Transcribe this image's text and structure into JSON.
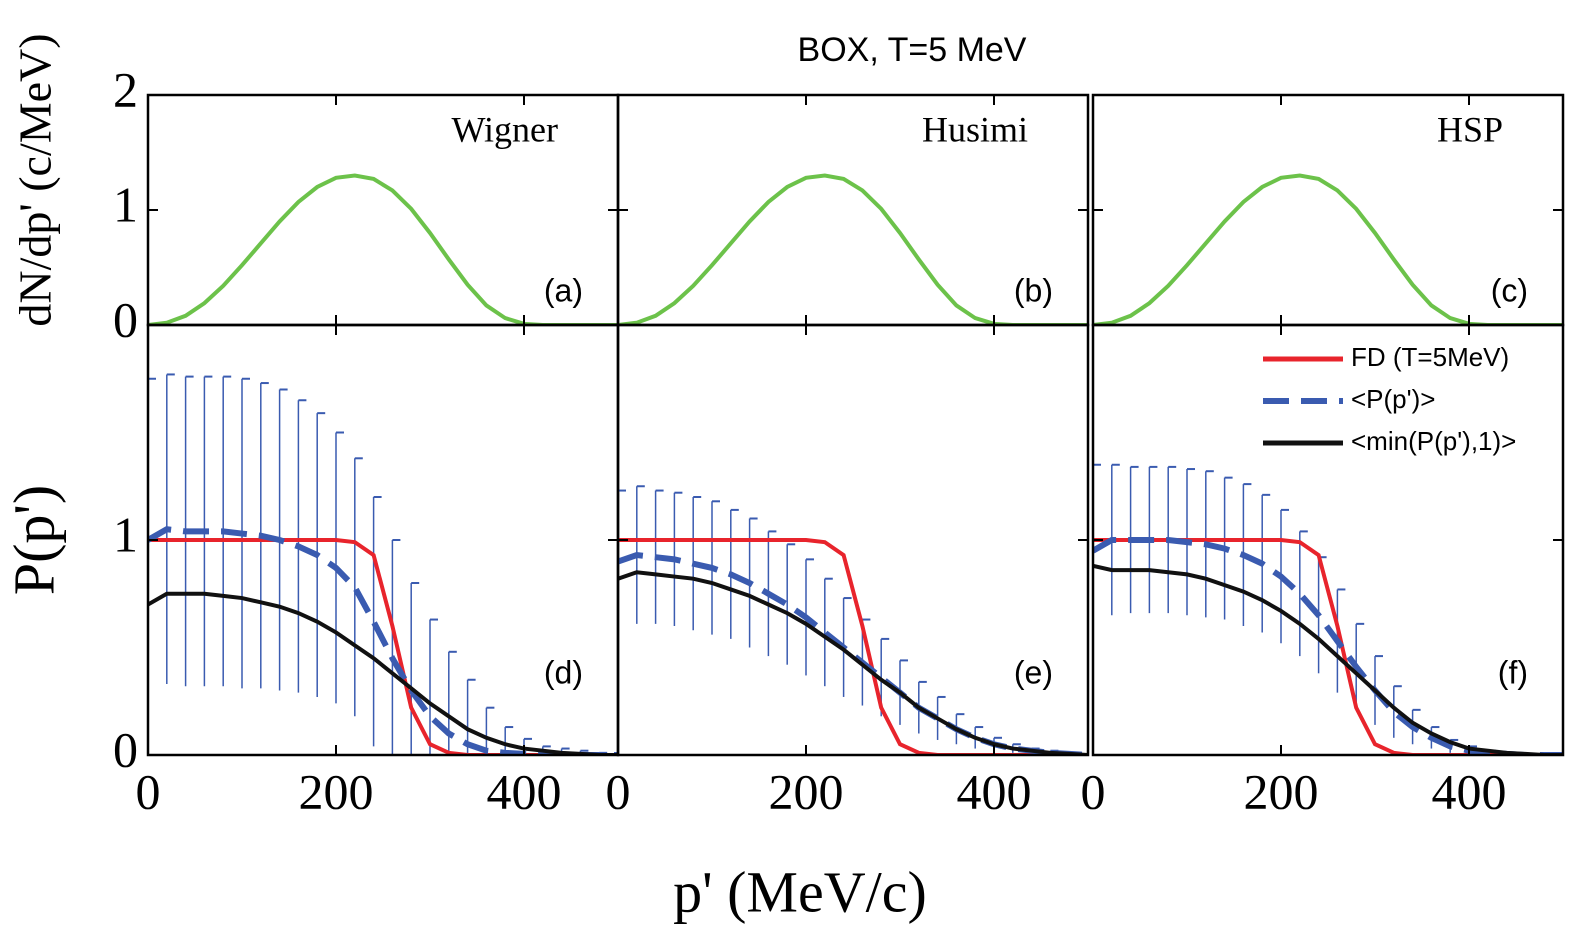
{
  "title": "BOX, T=5 MeV",
  "xlabel": "p' (MeV/c)",
  "chart_data": [
    {
      "type": "line",
      "title": "Wigner",
      "label": "(a)",
      "ylabel": "dN/dp' (c/MeV)",
      "xlim": [
        0,
        500
      ],
      "ylim": [
        0,
        2
      ],
      "xticks": [
        0,
        200,
        400
      ],
      "yticks": [
        0,
        1,
        2
      ],
      "xtick_labels": false,
      "ytick_labels": true,
      "x": [
        0,
        20,
        40,
        60,
        80,
        100,
        120,
        140,
        160,
        180,
        200,
        220,
        240,
        260,
        280,
        300,
        320,
        340,
        360,
        380,
        400,
        420,
        440,
        460,
        480,
        500
      ],
      "series": [
        {
          "color": "#6cc24a",
          "values": [
            0,
            0.02,
            0.08,
            0.19,
            0.34,
            0.52,
            0.71,
            0.9,
            1.07,
            1.2,
            1.28,
            1.3,
            1.27,
            1.17,
            1.01,
            0.8,
            0.57,
            0.35,
            0.17,
            0.06,
            0.01,
            0,
            0,
            0,
            0,
            0
          ]
        }
      ]
    },
    {
      "type": "line",
      "title": "Husimi",
      "label": "(b)",
      "xlim": [
        0,
        500
      ],
      "ylim": [
        0,
        2
      ],
      "xticks": [
        0,
        200,
        400
      ],
      "yticks": [
        0,
        1,
        2
      ],
      "xtick_labels": false,
      "ytick_labels": false,
      "x": [
        0,
        20,
        40,
        60,
        80,
        100,
        120,
        140,
        160,
        180,
        200,
        220,
        240,
        260,
        280,
        300,
        320,
        340,
        360,
        380,
        400,
        420,
        440,
        460,
        480,
        500
      ],
      "series": [
        {
          "color": "#6cc24a",
          "values": [
            0,
            0.02,
            0.08,
            0.19,
            0.34,
            0.52,
            0.71,
            0.9,
            1.07,
            1.2,
            1.28,
            1.3,
            1.27,
            1.17,
            1.01,
            0.8,
            0.57,
            0.35,
            0.17,
            0.06,
            0.01,
            0,
            0,
            0,
            0,
            0
          ]
        }
      ]
    },
    {
      "type": "line",
      "title": "HSP",
      "label": "(c)",
      "xlim": [
        0,
        500
      ],
      "ylim": [
        0,
        2
      ],
      "xticks": [
        0,
        200,
        400
      ],
      "yticks": [
        0,
        1,
        2
      ],
      "xtick_labels": false,
      "ytick_labels": false,
      "x": [
        0,
        20,
        40,
        60,
        80,
        100,
        120,
        140,
        160,
        180,
        200,
        220,
        240,
        260,
        280,
        300,
        320,
        340,
        360,
        380,
        400,
        420,
        440,
        460,
        480,
        500
      ],
      "series": [
        {
          "color": "#6cc24a",
          "values": [
            0,
            0.02,
            0.08,
            0.19,
            0.34,
            0.52,
            0.71,
            0.9,
            1.07,
            1.2,
            1.28,
            1.3,
            1.27,
            1.17,
            1.01,
            0.8,
            0.57,
            0.35,
            0.17,
            0.06,
            0.01,
            0,
            0,
            0,
            0,
            0
          ]
        }
      ]
    },
    {
      "type": "line",
      "label": "(d)",
      "ylabel": "P(p')",
      "xlim": [
        0,
        500
      ],
      "ylim": [
        0,
        2
      ],
      "xticks": [
        0,
        200,
        400
      ],
      "yticks": [
        0,
        1
      ],
      "xtick_labels": true,
      "ytick_labels": true,
      "x": [
        0,
        20,
        40,
        60,
        80,
        100,
        120,
        140,
        160,
        180,
        200,
        220,
        240,
        260,
        280,
        300,
        320,
        340,
        360,
        380,
        400,
        420,
        440,
        460,
        480,
        500
      ],
      "series": [
        {
          "color": "#e8242c",
          "values": [
            1,
            1,
            1,
            1,
            1,
            1,
            1,
            1,
            1,
            1,
            1,
            0.99,
            0.93,
            0.6,
            0.22,
            0.05,
            0.01,
            0,
            0,
            0,
            0,
            0,
            0,
            0,
            0,
            0
          ]
        },
        {
          "color": "#3a5bb0",
          "dash": true,
          "values": [
            1,
            1.05,
            1.04,
            1.04,
            1.04,
            1.03,
            1.02,
            1,
            0.97,
            0.93,
            0.87,
            0.78,
            0.62,
            0.45,
            0.3,
            0.18,
            0.1,
            0.05,
            0.02,
            0.01,
            0.005,
            0,
            0,
            0,
            0,
            0
          ],
          "errors": [
            0.75,
            0.72,
            0.72,
            0.72,
            0.72,
            0.72,
            0.71,
            0.7,
            0.68,
            0.66,
            0.63,
            0.6,
            0.58,
            0.55,
            0.5,
            0.45,
            0.38,
            0.3,
            0.2,
            0.12,
            0.07,
            0.04,
            0.03,
            0.02,
            0.01,
            0.01
          ]
        },
        {
          "color": "#111111",
          "values": [
            0.7,
            0.75,
            0.75,
            0.75,
            0.74,
            0.73,
            0.71,
            0.69,
            0.66,
            0.62,
            0.57,
            0.51,
            0.45,
            0.38,
            0.31,
            0.24,
            0.18,
            0.12,
            0.08,
            0.05,
            0.03,
            0.02,
            0.01,
            0.005,
            0,
            0
          ]
        }
      ]
    },
    {
      "type": "line",
      "label": "(e)",
      "xlim": [
        0,
        500
      ],
      "ylim": [
        0,
        2
      ],
      "xticks": [
        0,
        200,
        400
      ],
      "yticks": [
        0,
        1
      ],
      "xtick_labels": true,
      "ytick_labels": false,
      "x": [
        0,
        20,
        40,
        60,
        80,
        100,
        120,
        140,
        160,
        180,
        200,
        220,
        240,
        260,
        280,
        300,
        320,
        340,
        360,
        380,
        400,
        420,
        440,
        460,
        480,
        500
      ],
      "series": [
        {
          "color": "#e8242c",
          "values": [
            1,
            1,
            1,
            1,
            1,
            1,
            1,
            1,
            1,
            1,
            1,
            0.99,
            0.93,
            0.6,
            0.22,
            0.05,
            0.01,
            0,
            0,
            0,
            0,
            0,
            0,
            0,
            0,
            0
          ]
        },
        {
          "color": "#3a5bb0",
          "dash": true,
          "values": [
            0.9,
            0.93,
            0.92,
            0.91,
            0.89,
            0.87,
            0.84,
            0.8,
            0.75,
            0.7,
            0.64,
            0.57,
            0.5,
            0.43,
            0.36,
            0.29,
            0.22,
            0.17,
            0.12,
            0.08,
            0.05,
            0.03,
            0.02,
            0.01,
            0.005,
            0
          ],
          "errors": [
            0.33,
            0.32,
            0.31,
            0.31,
            0.31,
            0.31,
            0.3,
            0.3,
            0.29,
            0.28,
            0.27,
            0.25,
            0.23,
            0.2,
            0.18,
            0.15,
            0.12,
            0.1,
            0.07,
            0.05,
            0.03,
            0.02,
            0.01,
            0.01,
            0.005,
            0
          ]
        },
        {
          "color": "#111111",
          "values": [
            0.82,
            0.85,
            0.84,
            0.83,
            0.82,
            0.8,
            0.77,
            0.74,
            0.7,
            0.66,
            0.61,
            0.55,
            0.49,
            0.42,
            0.35,
            0.29,
            0.22,
            0.17,
            0.12,
            0.08,
            0.05,
            0.03,
            0.02,
            0.01,
            0.005,
            0
          ]
        }
      ]
    },
    {
      "type": "line",
      "label": "(f)",
      "legend": "upper right",
      "xlim": [
        0,
        500
      ],
      "ylim": [
        0,
        2
      ],
      "xticks": [
        0,
        200,
        400
      ],
      "yticks": [
        0,
        1
      ],
      "xtick_labels": true,
      "ytick_labels": false,
      "x": [
        0,
        20,
        40,
        60,
        80,
        100,
        120,
        140,
        160,
        180,
        200,
        220,
        240,
        260,
        280,
        300,
        320,
        340,
        360,
        380,
        400,
        420,
        440,
        460,
        480,
        500
      ],
      "series": [
        {
          "name": "FD (T=5MeV)",
          "color": "#e8242c",
          "values": [
            1,
            1,
            1,
            1,
            1,
            1,
            1,
            1,
            1,
            1,
            1,
            0.99,
            0.93,
            0.6,
            0.22,
            0.05,
            0.01,
            0,
            0,
            0,
            0,
            0,
            0,
            0,
            0,
            0
          ]
        },
        {
          "name": "<P(p')>",
          "color": "#3a5bb0",
          "dash": true,
          "values": [
            0.95,
            1,
            1,
            1,
            1,
            0.99,
            0.98,
            0.96,
            0.93,
            0.89,
            0.83,
            0.75,
            0.65,
            0.53,
            0.41,
            0.3,
            0.2,
            0.13,
            0.08,
            0.04,
            0.02,
            0.01,
            0.005,
            0,
            0,
            0
          ],
          "errors": [
            0.4,
            0.35,
            0.34,
            0.34,
            0.34,
            0.34,
            0.34,
            0.33,
            0.33,
            0.32,
            0.31,
            0.29,
            0.27,
            0.24,
            0.2,
            0.16,
            0.12,
            0.08,
            0.05,
            0.03,
            0.02,
            0.01,
            0.005,
            0,
            0,
            0
          ]
        },
        {
          "name": "<min(P(p'),1)>",
          "color": "#111111",
          "values": [
            0.88,
            0.86,
            0.86,
            0.86,
            0.85,
            0.84,
            0.82,
            0.79,
            0.76,
            0.72,
            0.67,
            0.61,
            0.54,
            0.46,
            0.38,
            0.3,
            0.22,
            0.15,
            0.1,
            0.06,
            0.03,
            0.02,
            0.01,
            0.005,
            0,
            0
          ]
        }
      ]
    }
  ]
}
